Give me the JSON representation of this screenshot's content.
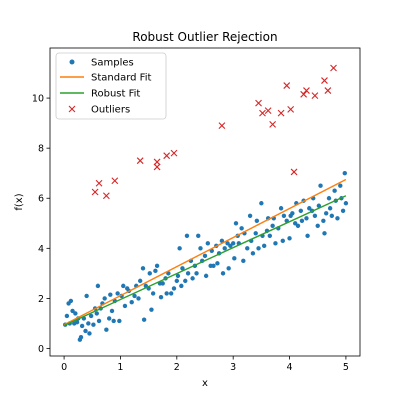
{
  "chart_data": {
    "type": "scatter",
    "title": "Robust Outlier Rejection",
    "xlabel": "x",
    "ylabel": "f(x)",
    "xlim": [
      -0.25,
      5.25
    ],
    "ylim": [
      -0.3,
      12.0
    ],
    "xticks": [
      0,
      1,
      2,
      3,
      4,
      5
    ],
    "yticks": [
      0,
      2,
      4,
      6,
      8,
      10
    ],
    "grid": false,
    "legend_position": "top-left",
    "colors": {
      "samples": "#1f77b4",
      "standard_fit": "#ff7f0e",
      "robust_fit": "#2ca02c",
      "outliers": "#d62728"
    },
    "series": [
      {
        "name": "Samples",
        "kind": "scatter",
        "points": [
          [
            0.02,
            0.95
          ],
          [
            0.05,
            1.3
          ],
          [
            0.08,
            1.8
          ],
          [
            0.1,
            1.0
          ],
          [
            0.12,
            1.9
          ],
          [
            0.15,
            1.5
          ],
          [
            0.18,
            1.0
          ],
          [
            0.2,
            1.4
          ],
          [
            0.23,
            1.05
          ],
          [
            0.25,
            1.2
          ],
          [
            0.28,
            0.35
          ],
          [
            0.3,
            0.45
          ],
          [
            0.32,
            0.9
          ],
          [
            0.35,
            1.2
          ],
          [
            0.38,
            0.7
          ],
          [
            0.4,
            2.1
          ],
          [
            0.43,
            1.0
          ],
          [
            0.45,
            0.6
          ],
          [
            0.48,
            1.3
          ],
          [
            0.52,
            0.95
          ],
          [
            0.55,
            1.6
          ],
          [
            0.58,
            1.4
          ],
          [
            0.6,
            2.5
          ],
          [
            0.62,
            1.1
          ],
          [
            0.65,
            1.6
          ],
          [
            0.68,
            1.8
          ],
          [
            0.72,
            2.0
          ],
          [
            0.75,
            0.75
          ],
          [
            0.8,
            1.2
          ],
          [
            0.82,
            2.15
          ],
          [
            0.85,
            1.5
          ],
          [
            0.88,
            1.1
          ],
          [
            0.9,
            1.9
          ],
          [
            0.95,
            2.2
          ],
          [
            0.98,
            1.1
          ],
          [
            1.02,
            2.1
          ],
          [
            1.05,
            2.5
          ],
          [
            1.08,
            1.7
          ],
          [
            1.12,
            2.4
          ],
          [
            1.15,
            2.3
          ],
          [
            1.2,
            1.85
          ],
          [
            1.25,
            2.1
          ],
          [
            1.28,
            2.5
          ],
          [
            1.32,
            2.0
          ],
          [
            1.35,
            2.7
          ],
          [
            1.4,
            3.2
          ],
          [
            1.42,
            1.15
          ],
          [
            1.45,
            2.5
          ],
          [
            1.5,
            2.4
          ],
          [
            1.52,
            3.0
          ],
          [
            1.55,
            1.55
          ],
          [
            1.58,
            2.2
          ],
          [
            1.62,
            3.1
          ],
          [
            1.65,
            3.3
          ],
          [
            1.7,
            2.6
          ],
          [
            1.72,
            2.05
          ],
          [
            1.75,
            2.6
          ],
          [
            1.8,
            2.8
          ],
          [
            1.82,
            2.2
          ],
          [
            1.85,
            3.0
          ],
          [
            1.9,
            2.2
          ],
          [
            1.95,
            2.4
          ],
          [
            2.0,
            2.7
          ],
          [
            2.02,
            2.9
          ],
          [
            2.05,
            4.0
          ],
          [
            2.08,
            2.5
          ],
          [
            2.1,
            3.2
          ],
          [
            2.15,
            2.7
          ],
          [
            2.18,
            4.5
          ],
          [
            2.2,
            3.0
          ],
          [
            2.25,
            3.5
          ],
          [
            2.28,
            2.8
          ],
          [
            2.32,
            3.3
          ],
          [
            2.35,
            3.0
          ],
          [
            2.38,
            4.5
          ],
          [
            2.42,
            4.0
          ],
          [
            2.45,
            3.5
          ],
          [
            2.5,
            3.7
          ],
          [
            2.52,
            2.9
          ],
          [
            2.55,
            4.2
          ],
          [
            2.6,
            3.3
          ],
          [
            2.62,
            3.9
          ],
          [
            2.65,
            3.3
          ],
          [
            2.7,
            4.1
          ],
          [
            2.72,
            3.4
          ],
          [
            2.75,
            3.8
          ],
          [
            2.8,
            4.3
          ],
          [
            2.82,
            3.0
          ],
          [
            2.85,
            4.0
          ],
          [
            2.9,
            4.2
          ],
          [
            2.92,
            3.2
          ],
          [
            2.95,
            4.1
          ],
          [
            3.0,
            4.2
          ],
          [
            3.02,
            3.6
          ],
          [
            3.05,
            5.0
          ],
          [
            3.08,
            4.5
          ],
          [
            3.1,
            4.2
          ],
          [
            3.15,
            4.8
          ],
          [
            3.18,
            3.5
          ],
          [
            3.2,
            4.6
          ],
          [
            3.25,
            4.0
          ],
          [
            3.3,
            5.3
          ],
          [
            3.32,
            4.3
          ],
          [
            3.35,
            3.8
          ],
          [
            3.4,
            4.6
          ],
          [
            3.42,
            5.1
          ],
          [
            3.45,
            4.0
          ],
          [
            3.5,
            5.8
          ],
          [
            3.52,
            4.5
          ],
          [
            3.55,
            4.1
          ],
          [
            3.6,
            4.7
          ],
          [
            3.62,
            5.2
          ],
          [
            3.65,
            4.5
          ],
          [
            3.7,
            4.9
          ],
          [
            3.72,
            5.2
          ],
          [
            3.75,
            4.2
          ],
          [
            3.8,
            4.8
          ],
          [
            3.85,
            5.6
          ],
          [
            3.88,
            4.3
          ],
          [
            3.9,
            5.3
          ],
          [
            3.95,
            5.1
          ],
          [
            4.0,
            4.4
          ],
          [
            4.02,
            5.3
          ],
          [
            4.05,
            5.4
          ],
          [
            4.1,
            5.0
          ],
          [
            4.12,
            5.8
          ],
          [
            4.15,
            4.9
          ],
          [
            4.2,
            5.5
          ],
          [
            4.22,
            5.1
          ],
          [
            4.25,
            5.9
          ],
          [
            4.3,
            5.2
          ],
          [
            4.32,
            4.5
          ],
          [
            4.35,
            5.6
          ],
          [
            4.4,
            5.5
          ],
          [
            4.42,
            6.0
          ],
          [
            4.45,
            5.3
          ],
          [
            4.5,
            4.9
          ],
          [
            4.52,
            5.7
          ],
          [
            4.55,
            6.5
          ],
          [
            4.6,
            5.1
          ],
          [
            4.62,
            4.6
          ],
          [
            4.65,
            5.4
          ],
          [
            4.7,
            6.0
          ],
          [
            4.72,
            5.6
          ],
          [
            4.75,
            5.3
          ],
          [
            4.8,
            6.3
          ],
          [
            4.82,
            5.9
          ],
          [
            4.85,
            5.2
          ],
          [
            4.9,
            6.5
          ],
          [
            4.92,
            6.0
          ],
          [
            4.95,
            5.5
          ],
          [
            4.98,
            7.0
          ],
          [
            5.0,
            5.8
          ]
        ]
      },
      {
        "name": "Standard Fit",
        "kind": "line",
        "points": [
          [
            0,
            0.95
          ],
          [
            5,
            6.75
          ]
        ]
      },
      {
        "name": "Robust Fit",
        "kind": "line",
        "points": [
          [
            0,
            0.92
          ],
          [
            5,
            6.1
          ]
        ]
      },
      {
        "name": "Outliers",
        "kind": "x-marker",
        "points": [
          [
            0.55,
            6.25
          ],
          [
            0.62,
            6.6
          ],
          [
            0.75,
            6.1
          ],
          [
            0.9,
            6.7
          ],
          [
            1.35,
            7.5
          ],
          [
            1.65,
            7.25
          ],
          [
            1.65,
            7.45
          ],
          [
            1.82,
            7.7
          ],
          [
            1.95,
            7.8
          ],
          [
            2.8,
            8.9
          ],
          [
            3.45,
            9.8
          ],
          [
            3.52,
            9.4
          ],
          [
            3.62,
            9.5
          ],
          [
            3.7,
            8.95
          ],
          [
            3.85,
            9.4
          ],
          [
            3.95,
            10.5
          ],
          [
            4.02,
            9.55
          ],
          [
            4.08,
            7.05
          ],
          [
            4.25,
            10.15
          ],
          [
            4.3,
            10.3
          ],
          [
            4.45,
            10.1
          ],
          [
            4.62,
            10.7
          ],
          [
            4.68,
            10.3
          ],
          [
            4.78,
            11.2
          ]
        ]
      }
    ]
  }
}
